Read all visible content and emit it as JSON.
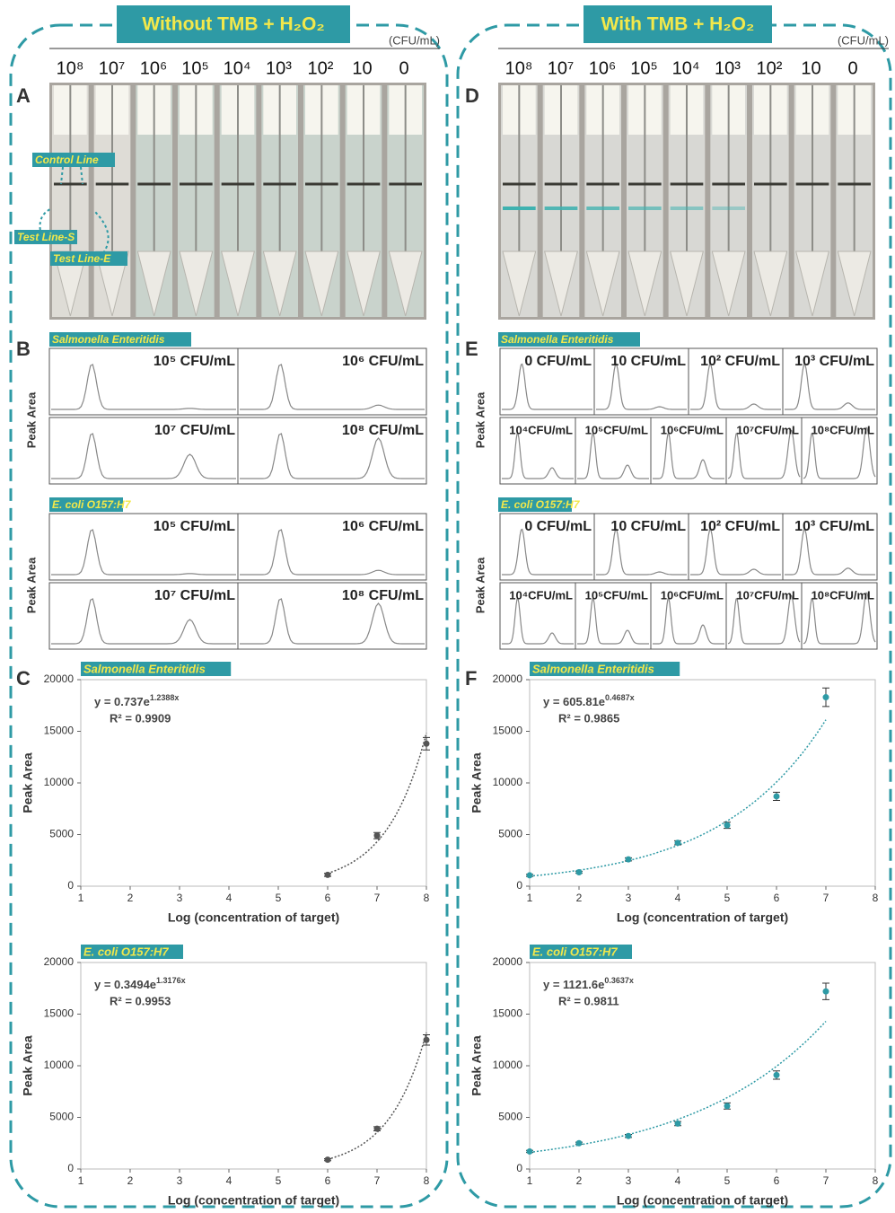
{
  "figure": {
    "left": {
      "header": "Without TMB + H₂O₂",
      "unit": "(CFU/mL)",
      "concentrations": [
        "10⁸",
        "10⁷",
        "10⁶",
        "10⁵",
        "10⁴",
        "10³",
        "10²",
        "10",
        "0"
      ],
      "strip_letter": "A",
      "strip_labels": [
        "Control Line",
        "Test Line-S",
        "Test Line-E"
      ],
      "peaks_letter": "B",
      "peak_groups": [
        {
          "name": "Salmonella Enteritidis",
          "y_label": "Peak Area",
          "panels": [
            "10⁵ CFU/mL",
            "10⁶ CFU/mL",
            "10⁷ CFU/mL",
            "10⁸ CFU/mL"
          ]
        },
        {
          "name": "E. coli O157:H7",
          "y_label": "Peak Area",
          "panels": [
            "10⁵ CFU/mL",
            "10⁶ CFU/mL",
            "10⁷ CFU/mL",
            "10⁸ CFU/mL"
          ]
        }
      ],
      "chart_letter": "C"
    },
    "right": {
      "header": "With TMB + H₂O₂",
      "unit": "(CFU/mL)",
      "concentrations": [
        "10⁸",
        "10⁷",
        "10⁶",
        "10⁵",
        "10⁴",
        "10³",
        "10²",
        "10",
        "0"
      ],
      "strip_letter": "D",
      "peaks_letter": "E",
      "peak_groups": [
        {
          "name": "Salmonella Enteritidis",
          "y_label": "Peak Area",
          "panels": [
            "0 CFU/mL",
            "10 CFU/mL",
            "10² CFU/mL",
            "10³ CFU/mL",
            "10⁴CFU/mL",
            "10⁵CFU/mL",
            "10⁶CFU/mL",
            "10⁷CFU/mL",
            "10⁸CFU/mL"
          ]
        },
        {
          "name": "E. coli O157:H7",
          "y_label": "Peak Area",
          "panels": [
            "0 CFU/mL",
            "10 CFU/mL",
            "10² CFU/mL",
            "10³ CFU/mL",
            "10⁴CFU/mL",
            "10⁵CFU/mL",
            "10⁶CFU/mL",
            "10⁷CFU/mL",
            "10⁸CFU/mL"
          ]
        }
      ],
      "chart_letter": "F"
    }
  },
  "chart_data": [
    {
      "type": "scatter",
      "title": "Salmonella Enteritidis",
      "x": [
        6,
        7,
        8
      ],
      "values": [
        1100,
        4900,
        13800
      ],
      "errors": [
        150,
        300,
        600
      ],
      "color": "#555555",
      "equation": {
        "label": "y = 0.737e",
        "exponent": "1.2388x"
      },
      "r2": "R² = 0.9909",
      "xlabel": "Log (concentration of target)",
      "ylabel": "Peak Area",
      "xlim": [
        1,
        8
      ],
      "xticks": [
        1,
        2,
        3,
        4,
        5,
        6,
        7,
        8
      ],
      "ylim": [
        0,
        20000
      ],
      "yticks": [
        0,
        5000,
        10000,
        15000,
        20000
      ]
    },
    {
      "type": "scatter",
      "title": "E. coli O157:H7",
      "x": [
        6,
        7,
        8
      ],
      "values": [
        900,
        3900,
        12500
      ],
      "errors": [
        100,
        200,
        500
      ],
      "color": "#555555",
      "equation": {
        "label": "y = 0.3494e",
        "exponent": "1.3176x"
      },
      "r2": "R² = 0.9953",
      "xlabel": "Log (concentration of target)",
      "ylabel": "Peak Area",
      "xlim": [
        1,
        8
      ],
      "xticks": [
        1,
        2,
        3,
        4,
        5,
        6,
        7,
        8
      ],
      "ylim": [
        0,
        20000
      ],
      "yticks": [
        0,
        5000,
        10000,
        15000,
        20000
      ]
    },
    {
      "type": "scatter",
      "title": "Salmonella Enteritidis",
      "x": [
        1,
        2,
        3,
        4,
        5,
        6,
        7
      ],
      "values": [
        1050,
        1350,
        2600,
        4200,
        5900,
        8700,
        18300
      ],
      "errors": [
        100,
        100,
        150,
        200,
        300,
        400,
        900
      ],
      "color": "#2e9aa5",
      "equation": {
        "label": "y = 605.81e",
        "exponent": "0.4687x"
      },
      "r2": "R² = 0.9865",
      "xlabel": "Log (concentration of target)",
      "ylabel": "Peak Area",
      "xlim": [
        1,
        8
      ],
      "xticks": [
        1,
        2,
        3,
        4,
        5,
        6,
        7,
        8
      ],
      "ylim": [
        0,
        20000
      ],
      "yticks": [
        0,
        5000,
        10000,
        15000,
        20000
      ]
    },
    {
      "type": "scatter",
      "title": "E. coli O157:H7",
      "x": [
        1,
        2,
        3,
        4,
        5,
        6,
        7
      ],
      "values": [
        1700,
        2500,
        3200,
        4400,
        6100,
        9100,
        17200
      ],
      "errors": [
        100,
        100,
        150,
        200,
        300,
        400,
        800
      ],
      "color": "#2e9aa5",
      "equation": {
        "label": "y = 1121.6e",
        "exponent": "0.3637x"
      },
      "r2": "R² = 0.9811",
      "xlabel": "Log (concentration of target)",
      "ylabel": "Peak Area",
      "xlim": [
        1,
        8
      ],
      "xticks": [
        1,
        2,
        3,
        4,
        5,
        6,
        7,
        8
      ],
      "ylim": [
        0,
        20000
      ],
      "yticks": [
        0,
        5000,
        10000,
        15000,
        20000
      ]
    }
  ]
}
